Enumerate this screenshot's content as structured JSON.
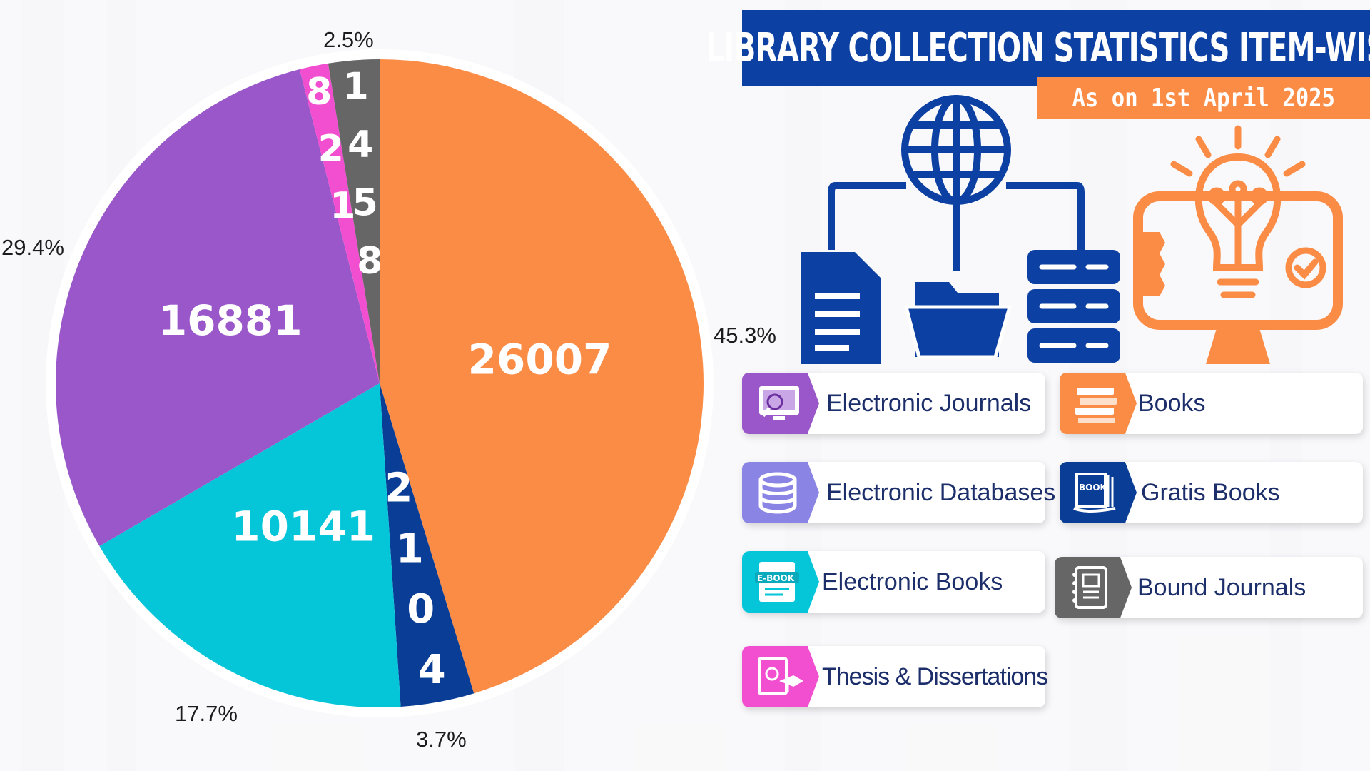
{
  "header": {
    "title": "LIBRARY COLLECTION STATISTICS ITEM-WISE",
    "subtitle": "As on 1st April 2025"
  },
  "legend": [
    {
      "label": "Electronic Journals",
      "color": "#9a57c9",
      "icon": "journal-search-icon"
    },
    {
      "label": "Books",
      "color": "#fb8c46",
      "icon": "books-stack-icon"
    },
    {
      "label": "Electronic Databases",
      "color": "#8a84e4",
      "icon": "database-icon"
    },
    {
      "label": "Gratis Books",
      "color": "#0a3e96",
      "icon": "book-hand-icon"
    },
    {
      "label": "Electronic Books",
      "color": "#05c6d9",
      "icon": "ebook-icon"
    },
    {
      "label": "Bound Journals",
      "color": "#666666",
      "icon": "notebook-icon"
    },
    {
      "label": "Thesis & Dissertations",
      "color": "#f24fd0",
      "icon": "thesis-icon"
    }
  ],
  "chart_data": {
    "type": "pie",
    "slices": [
      {
        "value": 26007,
        "label": "26007",
        "percent": "45.3%",
        "color": "#fb8c46"
      },
      {
        "value": 2104,
        "label": "2104",
        "percent": "3.7%",
        "color": "#0a3e96"
      },
      {
        "value": 10141,
        "label": "10141",
        "percent": "17.7%",
        "color": "#05c6d9"
      },
      {
        "value": 16881,
        "label": "16881",
        "percent": "29.4%",
        "color": "#9a57c9"
      },
      {
        "value": 821,
        "label": "821",
        "percent": "",
        "color": "#f24fd0"
      },
      {
        "value": 1458,
        "label": "1458",
        "percent": "2.5%",
        "color": "#666666"
      }
    ]
  }
}
